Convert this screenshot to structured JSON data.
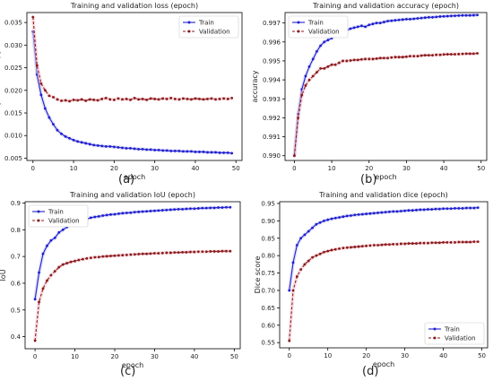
{
  "chart_data": [
    {
      "id": "a",
      "type": "line",
      "title": "Training and validation loss (epoch)",
      "xlabel": "epoch",
      "ylabel": "binary cross-entropy",
      "panel_label": "(a)",
      "xlim": [
        -1.5,
        51.5
      ],
      "ylim": [
        0.0045,
        0.0372
      ],
      "xticks": [
        0,
        10,
        20,
        30,
        40,
        50
      ],
      "yticks": [
        0.005,
        0.01,
        0.015,
        0.02,
        0.025,
        0.03,
        0.035
      ],
      "ytick_labels": [
        "0.005",
        "0.010",
        "0.015",
        "0.020",
        "0.025",
        "0.030",
        "0.035"
      ],
      "legend": {
        "position": "top-right",
        "entries": [
          "Train",
          "Validation"
        ]
      },
      "colors": {
        "train": "#1f1fd0",
        "validation": "#8b1a1a"
      },
      "x": [
        0,
        1,
        2,
        3,
        4,
        5,
        6,
        7,
        8,
        9,
        10,
        11,
        12,
        13,
        14,
        15,
        16,
        17,
        18,
        19,
        20,
        21,
        22,
        23,
        24,
        25,
        26,
        27,
        28,
        29,
        30,
        31,
        32,
        33,
        34,
        35,
        36,
        37,
        38,
        39,
        40,
        41,
        42,
        43,
        44,
        45,
        46,
        47,
        48,
        49
      ],
      "series": [
        {
          "name": "Train",
          "values": [
            0.033,
            0.0235,
            0.019,
            0.016,
            0.014,
            0.0125,
            0.0112,
            0.0104,
            0.0098,
            0.0094,
            0.009,
            0.0087,
            0.0085,
            0.0083,
            0.0081,
            0.0079,
            0.0078,
            0.0077,
            0.0076,
            0.0076,
            0.0075,
            0.0074,
            0.0073,
            0.0072,
            0.0072,
            0.0071,
            0.007,
            0.007,
            0.0069,
            0.0069,
            0.0068,
            0.0068,
            0.0067,
            0.0067,
            0.0066,
            0.0066,
            0.0066,
            0.0065,
            0.0065,
            0.0065,
            0.0064,
            0.0064,
            0.0064,
            0.0063,
            0.0063,
            0.0063,
            0.0062,
            0.0062,
            0.0062,
            0.0061
          ]
        },
        {
          "name": "Validation",
          "values": [
            0.0362,
            0.0255,
            0.0215,
            0.02,
            0.0188,
            0.0185,
            0.018,
            0.0177,
            0.0178,
            0.0176,
            0.0179,
            0.0178,
            0.018,
            0.0177,
            0.018,
            0.0179,
            0.0178,
            0.0181,
            0.0183,
            0.018,
            0.0179,
            0.0182,
            0.018,
            0.0181,
            0.0179,
            0.0183,
            0.018,
            0.0181,
            0.0179,
            0.0182,
            0.0181,
            0.018,
            0.0182,
            0.0181,
            0.0183,
            0.0181,
            0.018,
            0.0182,
            0.0181,
            0.018,
            0.0182,
            0.0181,
            0.018,
            0.0181,
            0.0182,
            0.018,
            0.0181,
            0.0182,
            0.0181,
            0.0183
          ]
        }
      ]
    },
    {
      "id": "b",
      "type": "line",
      "title": "Training and validation accuracy (epoch)",
      "xlabel": "epoch",
      "ylabel": "accuracy",
      "panel_label": "(b)",
      "xlim": [
        -2.5,
        51.5
      ],
      "ylim": [
        0.98975,
        0.99755
      ],
      "xticks": [
        0,
        10,
        20,
        30,
        40,
        50
      ],
      "yticks": [
        0.99,
        0.991,
        0.992,
        0.993,
        0.994,
        0.995,
        0.996,
        0.997
      ],
      "ytick_labels": [
        "0.990",
        "0.991",
        "0.992",
        "0.993",
        "0.994",
        "0.995",
        "0.996",
        "0.997"
      ],
      "legend": {
        "position": "top-left",
        "entries": [
          "Train",
          "Validation"
        ]
      },
      "colors": {
        "train": "#1f1fd0",
        "validation": "#8b1a1a"
      },
      "x": [
        0,
        1,
        2,
        3,
        4,
        5,
        6,
        7,
        8,
        9,
        10,
        11,
        12,
        13,
        14,
        15,
        16,
        17,
        18,
        19,
        20,
        21,
        22,
        23,
        24,
        25,
        26,
        27,
        28,
        29,
        30,
        31,
        32,
        33,
        34,
        35,
        36,
        37,
        38,
        39,
        40,
        41,
        42,
        43,
        44,
        45,
        46,
        47,
        48,
        49
      ],
      "series": [
        {
          "name": "Train",
          "values": [
            0.99,
            0.9922,
            0.9935,
            0.9942,
            0.9947,
            0.9951,
            0.9955,
            0.9958,
            0.996,
            0.9961,
            0.9962,
            0.9964,
            0.9965,
            0.9966,
            0.9966,
            0.9967,
            0.99675,
            0.9968,
            0.99685,
            0.9968,
            0.9969,
            0.99695,
            0.997,
            0.997,
            0.99705,
            0.9971,
            0.99712,
            0.99714,
            0.99716,
            0.99718,
            0.9972,
            0.9972,
            0.99722,
            0.99724,
            0.99726,
            0.99728,
            0.9973,
            0.9973,
            0.99732,
            0.99734,
            0.99735,
            0.99736,
            0.99737,
            0.99738,
            0.99739,
            0.9974,
            0.9974,
            0.9974,
            0.99741,
            0.99742
          ]
        },
        {
          "name": "Validation",
          "values": [
            0.99,
            0.992,
            0.9932,
            0.9937,
            0.994,
            0.9942,
            0.9944,
            0.9946,
            0.9946,
            0.9947,
            0.9948,
            0.9948,
            0.9949,
            0.995,
            0.995,
            0.99502,
            0.99505,
            0.99505,
            0.99508,
            0.9951,
            0.9951,
            0.9951,
            0.99512,
            0.99515,
            0.99515,
            0.99515,
            0.99518,
            0.9952,
            0.9952,
            0.9952,
            0.99522,
            0.99525,
            0.99525,
            0.99525,
            0.99528,
            0.9953,
            0.9953,
            0.9953,
            0.99532,
            0.99532,
            0.99534,
            0.99535,
            0.99535,
            0.99535,
            0.99536,
            0.99537,
            0.99538,
            0.99538,
            0.99538,
            0.9954
          ]
        }
      ]
    },
    {
      "id": "c",
      "type": "line",
      "title": "Training and validation IoU (epoch)",
      "xlabel": "epoch",
      "ylabel": "IoU",
      "panel_label": "(c)",
      "xlim": [
        -2.5,
        51.5
      ],
      "ylim": [
        0.355,
        0.905
      ],
      "xticks": [
        0,
        10,
        20,
        30,
        40,
        50
      ],
      "yticks": [
        0.4,
        0.5,
        0.6,
        0.7,
        0.8,
        0.9
      ],
      "ytick_labels": [
        "0.4",
        "0.5",
        "0.6",
        "0.7",
        "0.8",
        "0.9"
      ],
      "legend": {
        "position": "top-left",
        "entries": [
          "Train",
          "Validation"
        ]
      },
      "colors": {
        "train": "#1f1fd0",
        "validation": "#8b1a1a"
      },
      "x": [
        0,
        1,
        2,
        3,
        4,
        5,
        6,
        7,
        8,
        9,
        10,
        11,
        12,
        13,
        14,
        15,
        16,
        17,
        18,
        19,
        20,
        21,
        22,
        23,
        24,
        25,
        26,
        27,
        28,
        29,
        30,
        31,
        32,
        33,
        34,
        35,
        36,
        37,
        38,
        39,
        40,
        41,
        42,
        43,
        44,
        45,
        46,
        47,
        48,
        49
      ],
      "series": [
        {
          "name": "Train",
          "values": [
            0.54,
            0.64,
            0.71,
            0.74,
            0.76,
            0.77,
            0.79,
            0.8,
            0.81,
            0.82,
            0.825,
            0.83,
            0.835,
            0.84,
            0.845,
            0.848,
            0.85,
            0.853,
            0.855,
            0.857,
            0.858,
            0.86,
            0.862,
            0.863,
            0.864,
            0.866,
            0.867,
            0.868,
            0.869,
            0.87,
            0.871,
            0.872,
            0.873,
            0.874,
            0.875,
            0.876,
            0.877,
            0.877,
            0.878,
            0.879,
            0.879,
            0.88,
            0.881,
            0.881,
            0.882,
            0.882,
            0.883,
            0.883,
            0.884,
            0.884
          ]
        },
        {
          "name": "Validation",
          "values": [
            0.385,
            0.53,
            0.58,
            0.61,
            0.63,
            0.645,
            0.66,
            0.67,
            0.675,
            0.68,
            0.683,
            0.687,
            0.69,
            0.693,
            0.695,
            0.697,
            0.698,
            0.7,
            0.701,
            0.702,
            0.703,
            0.704,
            0.705,
            0.706,
            0.707,
            0.708,
            0.709,
            0.71,
            0.71,
            0.711,
            0.712,
            0.712,
            0.713,
            0.714,
            0.714,
            0.715,
            0.715,
            0.716,
            0.716,
            0.717,
            0.717,
            0.718,
            0.718,
            0.718,
            0.719,
            0.719,
            0.719,
            0.72,
            0.72,
            0.72
          ]
        }
      ]
    },
    {
      "id": "d",
      "type": "line",
      "title": "Training and validation dice (epoch)",
      "xlabel": "epoch",
      "ylabel": "Dice score",
      "panel_label": "(d)",
      "xlim": [
        -2.5,
        51.5
      ],
      "ylim": [
        0.535,
        0.955
      ],
      "xticks": [
        0,
        10,
        20,
        30,
        40,
        50
      ],
      "yticks": [
        0.55,
        0.6,
        0.65,
        0.7,
        0.75,
        0.8,
        0.85,
        0.9,
        0.95
      ],
      "ytick_labels": [
        "0.55",
        "0.60",
        "0.65",
        "0.70",
        "0.75",
        "0.80",
        "0.85",
        "0.90",
        "0.95"
      ],
      "legend": {
        "position": "bottom-right",
        "entries": [
          "Train",
          "Validation"
        ]
      },
      "colors": {
        "train": "#1f1fd0",
        "validation": "#8b1a1a"
      },
      "x": [
        0,
        1,
        2,
        3,
        4,
        5,
        6,
        7,
        8,
        9,
        10,
        11,
        12,
        13,
        14,
        15,
        16,
        17,
        18,
        19,
        20,
        21,
        22,
        23,
        24,
        25,
        26,
        27,
        28,
        29,
        30,
        31,
        32,
        33,
        34,
        35,
        36,
        37,
        38,
        39,
        40,
        41,
        42,
        43,
        44,
        45,
        46,
        47,
        48,
        49
      ],
      "series": [
        {
          "name": "Train",
          "values": [
            0.7,
            0.78,
            0.83,
            0.85,
            0.86,
            0.87,
            0.88,
            0.89,
            0.895,
            0.9,
            0.903,
            0.906,
            0.908,
            0.91,
            0.912,
            0.914,
            0.915,
            0.917,
            0.918,
            0.919,
            0.92,
            0.921,
            0.922,
            0.923,
            0.924,
            0.925,
            0.926,
            0.927,
            0.927,
            0.928,
            0.929,
            0.93,
            0.93,
            0.931,
            0.932,
            0.932,
            0.933,
            0.933,
            0.934,
            0.934,
            0.935,
            0.935,
            0.935,
            0.936,
            0.936,
            0.936,
            0.937,
            0.937,
            0.937,
            0.938
          ]
        },
        {
          "name": "Validation",
          "values": [
            0.555,
            0.7,
            0.74,
            0.76,
            0.775,
            0.785,
            0.795,
            0.8,
            0.805,
            0.81,
            0.813,
            0.816,
            0.818,
            0.82,
            0.822,
            0.823,
            0.824,
            0.825,
            0.826,
            0.827,
            0.828,
            0.829,
            0.83,
            0.83,
            0.831,
            0.832,
            0.832,
            0.833,
            0.833,
            0.834,
            0.834,
            0.835,
            0.835,
            0.835,
            0.836,
            0.836,
            0.836,
            0.837,
            0.837,
            0.837,
            0.838,
            0.838,
            0.838,
            0.838,
            0.839,
            0.839,
            0.839,
            0.839,
            0.84,
            0.84
          ]
        }
      ]
    }
  ]
}
